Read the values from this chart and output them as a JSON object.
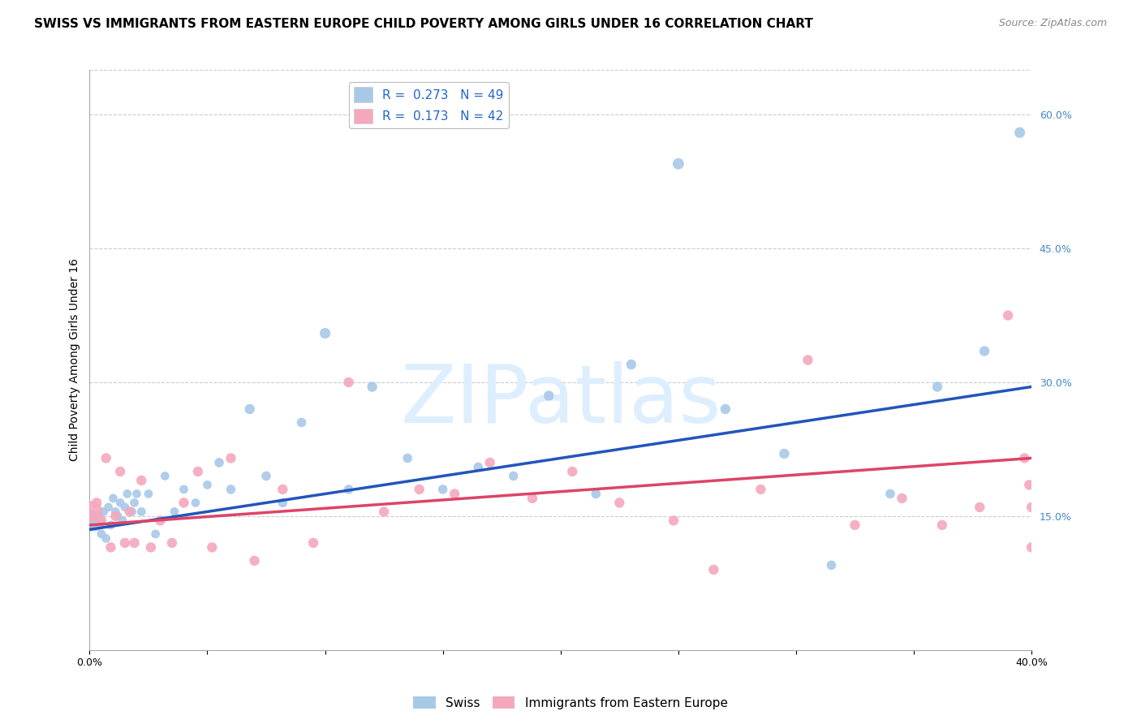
{
  "title": "SWISS VS IMMIGRANTS FROM EASTERN EUROPE CHILD POVERTY AMONG GIRLS UNDER 16 CORRELATION CHART",
  "source": "Source: ZipAtlas.com",
  "ylabel": "Child Poverty Among Girls Under 16",
  "x_min": 0.0,
  "x_max": 0.4,
  "y_min": 0.0,
  "y_max": 0.65,
  "x_ticks": [
    0.0,
    0.05,
    0.1,
    0.15,
    0.2,
    0.25,
    0.3,
    0.35,
    0.4
  ],
  "x_tick_labels": [
    "0.0%",
    "",
    "",
    "",
    "",
    "",
    "",
    "",
    "40.0%"
  ],
  "y_tick_labels_right": [
    "15.0%",
    "30.0%",
    "45.0%",
    "60.0%"
  ],
  "y_tick_vals_right": [
    0.15,
    0.3,
    0.45,
    0.6
  ],
  "swiss_color": "#a8c8e8",
  "pink_color": "#f4a8bc",
  "swiss_line_color": "#2255bb",
  "pink_line_color": "#dd4466",
  "legend_swiss_label": "R =  0.273   N = 49",
  "legend_pink_label": "R =  0.173   N = 42",
  "legend_label_swiss": "Swiss",
  "legend_label_pink": "Immigrants from Eastern Europe",
  "watermark": "ZIPatlas",
  "swiss_x": [
    0.002,
    0.004,
    0.005,
    0.006,
    0.007,
    0.008,
    0.009,
    0.01,
    0.011,
    0.012,
    0.013,
    0.014,
    0.015,
    0.016,
    0.018,
    0.019,
    0.02,
    0.022,
    0.025,
    0.028,
    0.032,
    0.036,
    0.04,
    0.045,
    0.05,
    0.055,
    0.06,
    0.068,
    0.075,
    0.082,
    0.09,
    0.1,
    0.11,
    0.12,
    0.135,
    0.15,
    0.165,
    0.18,
    0.195,
    0.215,
    0.23,
    0.25,
    0.27,
    0.295,
    0.315,
    0.34,
    0.36,
    0.38,
    0.395
  ],
  "swiss_y": [
    0.145,
    0.15,
    0.13,
    0.155,
    0.125,
    0.16,
    0.14,
    0.17,
    0.155,
    0.15,
    0.165,
    0.145,
    0.16,
    0.175,
    0.155,
    0.165,
    0.175,
    0.155,
    0.175,
    0.13,
    0.195,
    0.155,
    0.18,
    0.165,
    0.185,
    0.21,
    0.18,
    0.27,
    0.195,
    0.165,
    0.255,
    0.355,
    0.18,
    0.295,
    0.215,
    0.18,
    0.205,
    0.195,
    0.285,
    0.175,
    0.32,
    0.545,
    0.27,
    0.22,
    0.095,
    0.175,
    0.295,
    0.335,
    0.58
  ],
  "swiss_sizes": [
    350,
    60,
    60,
    60,
    60,
    60,
    60,
    60,
    60,
    60,
    60,
    60,
    60,
    60,
    60,
    60,
    60,
    60,
    60,
    60,
    60,
    60,
    60,
    60,
    60,
    70,
    70,
    80,
    70,
    70,
    70,
    90,
    70,
    80,
    70,
    70,
    70,
    70,
    80,
    70,
    80,
    100,
    80,
    80,
    70,
    70,
    80,
    80,
    90
  ],
  "pink_x": [
    0.001,
    0.003,
    0.005,
    0.007,
    0.009,
    0.011,
    0.013,
    0.015,
    0.017,
    0.019,
    0.022,
    0.026,
    0.03,
    0.035,
    0.04,
    0.046,
    0.052,
    0.06,
    0.07,
    0.082,
    0.095,
    0.11,
    0.125,
    0.14,
    0.155,
    0.17,
    0.188,
    0.205,
    0.225,
    0.248,
    0.265,
    0.285,
    0.305,
    0.325,
    0.345,
    0.362,
    0.378,
    0.39,
    0.397,
    0.399,
    0.4,
    0.4
  ],
  "pink_y": [
    0.155,
    0.165,
    0.145,
    0.215,
    0.115,
    0.15,
    0.2,
    0.12,
    0.155,
    0.12,
    0.19,
    0.115,
    0.145,
    0.12,
    0.165,
    0.2,
    0.115,
    0.215,
    0.1,
    0.18,
    0.12,
    0.3,
    0.155,
    0.18,
    0.175,
    0.21,
    0.17,
    0.2,
    0.165,
    0.145,
    0.09,
    0.18,
    0.325,
    0.14,
    0.17,
    0.14,
    0.16,
    0.375,
    0.215,
    0.185,
    0.16,
    0.115
  ],
  "pink_sizes": [
    350,
    80,
    80,
    80,
    80,
    80,
    80,
    80,
    80,
    80,
    80,
    80,
    80,
    80,
    80,
    80,
    80,
    80,
    80,
    80,
    80,
    80,
    80,
    80,
    80,
    80,
    80,
    80,
    80,
    80,
    80,
    80,
    80,
    80,
    80,
    80,
    80,
    80,
    80,
    80,
    80,
    80
  ],
  "swiss_line_x": [
    0.0,
    0.4
  ],
  "swiss_line_y": [
    0.135,
    0.295
  ],
  "pink_line_x": [
    0.0,
    0.4
  ],
  "pink_line_y": [
    0.14,
    0.215
  ],
  "background_color": "#ffffff",
  "grid_color": "#cccccc",
  "title_fontsize": 11,
  "source_fontsize": 9,
  "axis_label_fontsize": 10,
  "tick_fontsize": 9,
  "legend_fontsize": 11,
  "watermark_color": "#ddeeff",
  "watermark_fontsize": 72
}
